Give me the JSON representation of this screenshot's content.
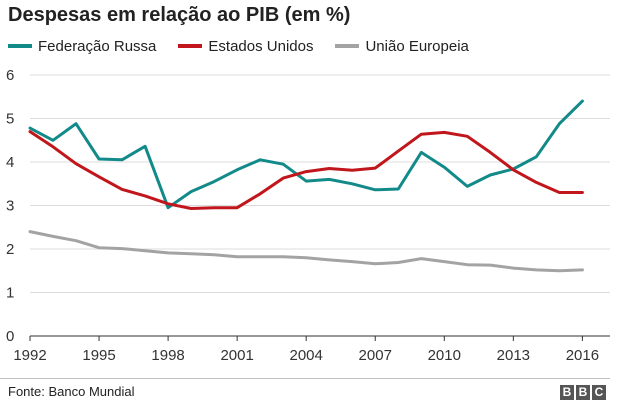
{
  "chart_data": {
    "type": "line",
    "title": "Despesas em relação ao PIB (em %)",
    "xlabel": "",
    "ylabel": "",
    "x": [
      1992,
      1993,
      1994,
      1995,
      1996,
      1997,
      1998,
      1999,
      2000,
      2001,
      2002,
      2003,
      2004,
      2005,
      2006,
      2007,
      2008,
      2009,
      2010,
      2011,
      2012,
      2013,
      2014,
      2015,
      2016
    ],
    "xticks": [
      1992,
      1995,
      1998,
      2001,
      2004,
      2007,
      2010,
      2013,
      2016
    ],
    "yticks": [
      0,
      1,
      2,
      3,
      4,
      5,
      6
    ],
    "xlim": [
      1992,
      2017.2
    ],
    "ylim": [
      0,
      6
    ],
    "grid": true,
    "legend_position": "top-left",
    "series": [
      {
        "name": "Federação Russa",
        "color": "#138a8a",
        "values": [
          4.78,
          4.5,
          4.88,
          4.07,
          4.05,
          4.36,
          2.95,
          3.32,
          3.55,
          3.82,
          4.05,
          3.95,
          3.56,
          3.6,
          3.5,
          3.36,
          3.38,
          4.22,
          3.88,
          3.44,
          3.7,
          3.84,
          4.12,
          4.88,
          5.4
        ]
      },
      {
        "name": "Estados Unidos",
        "color": "#c0161c",
        "values": [
          4.7,
          4.35,
          3.96,
          3.66,
          3.37,
          3.22,
          3.04,
          2.93,
          2.95,
          2.95,
          3.27,
          3.63,
          3.78,
          3.85,
          3.81,
          3.86,
          4.25,
          4.64,
          4.68,
          4.59,
          4.22,
          3.82,
          3.53,
          3.3,
          3.3
        ]
      },
      {
        "name": "União Europeia",
        "color": "#a3a3a3",
        "values": [
          2.4,
          2.29,
          2.19,
          2.03,
          2.01,
          1.96,
          1.91,
          1.89,
          1.87,
          1.82,
          1.82,
          1.82,
          1.8,
          1.75,
          1.71,
          1.66,
          1.69,
          1.78,
          1.71,
          1.64,
          1.63,
          1.56,
          1.52,
          1.5,
          1.52
        ]
      }
    ]
  },
  "footer": {
    "source": "Fonte: Banco Mundial",
    "logo_letters": [
      "B",
      "B",
      "C"
    ]
  }
}
